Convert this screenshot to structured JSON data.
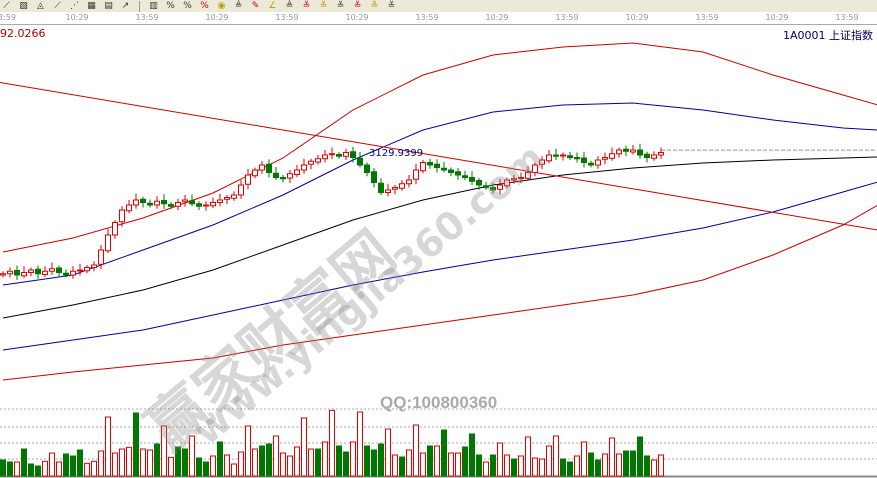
{
  "toolbar": {
    "icons": [
      "line-tool-icon",
      "channel-tool-icon",
      "fan-tool-icon",
      "ray-tool-icon",
      "fib-tool-icon",
      "grid-tool-icon",
      "box-tool-icon",
      "arrow-tool-icon",
      "|",
      "chart-type-icon",
      "percent-icon",
      "ratio-icon",
      "percent-line-icon",
      "coin-icon",
      "gold-icon",
      "pen-icon",
      "angle-icon",
      "gold-line-icon",
      "level-1-icon",
      "level-2-icon",
      "level-3-icon",
      "level-4-icon",
      "level-5-icon",
      "level-6-icon"
    ],
    "glyphs": [
      "⟋",
      "▧",
      "◬",
      "⟋",
      "⋰",
      "▦",
      "▤",
      "↗",
      "|",
      "▥",
      "%",
      "%",
      "%",
      "◉",
      "≜",
      "✎",
      "∠",
      "≜",
      "≚",
      "≚",
      "≚",
      "≚",
      "≚",
      "≚"
    ]
  },
  "time_axis": [
    "3:59",
    "10:29",
    "13:59",
    "10:29",
    "13:59",
    "10:29",
    "13:59",
    "10:29",
    "13:59",
    "10:29",
    "13:59",
    "10:29",
    "13:59"
  ],
  "last_value": "92.0266",
  "symbol": "1A0001  上证指数",
  "annotation": "3129.9399",
  "watermark": {
    "brand": "赢家财富网",
    "url": "www.yingjia360.com",
    "qq": "QQ:100800360"
  },
  "colors": {
    "up": "#e00000",
    "down": "#007700",
    "band_outer": "#cc0000",
    "band_inner": "#000099",
    "mid": "#000000",
    "trend": "#cc0000"
  },
  "chart_data": {
    "type": "candlestick",
    "reference_price": 3129.9399,
    "close": [
      3031,
      3033,
      3030,
      3032,
      3034,
      3031,
      3033,
      3035,
      3032,
      3030,
      3033,
      3034,
      3036,
      3038,
      3050,
      3062,
      3072,
      3082,
      3086,
      3090,
      3088,
      3086,
      3089,
      3087,
      3085,
      3088,
      3090,
      3087,
      3085,
      3086,
      3088,
      3090,
      3092,
      3094,
      3102,
      3110,
      3114,
      3118,
      3112,
      3108,
      3107,
      3111,
      3114,
      3118,
      3121,
      3123,
      3126,
      3127,
      3125,
      3128,
      3124,
      3118,
      3112,
      3104,
      3096,
      3098,
      3100,
      3103,
      3106,
      3114,
      3120,
      3118,
      3116,
      3114,
      3112,
      3110,
      3108,
      3105,
      3102,
      3100,
      3098,
      3102,
      3106,
      3107,
      3108,
      3112,
      3118,
      3122,
      3126,
      3125,
      3126,
      3124,
      3123,
      3120,
      3118,
      3122,
      3124,
      3127,
      3130,
      3129,
      3130,
      3126,
      3124,
      3126,
      3128
    ],
    "band_index": [
      0,
      10,
      20,
      30,
      40,
      50,
      60,
      70,
      80,
      90,
      100,
      110,
      120,
      125
    ],
    "bands": {
      "upper_outer": [
        3048.4,
        3059.6,
        3075.6,
        3095.6,
        3123.6,
        3162,
        3190,
        3206,
        3212.4,
        3215.6,
        3208.4,
        3190,
        3174,
        3166
      ],
      "upper_inner": [
        3022,
        3030,
        3050,
        3070,
        3094,
        3122,
        3146,
        3160.4,
        3166,
        3167.6,
        3162,
        3154,
        3147.6,
        3146
      ],
      "middle": [
        2995.6,
        3006,
        3018,
        3034,
        3054,
        3074,
        3090,
        3102,
        3110,
        3115.6,
        3119.6,
        3122,
        3123.6,
        3124.4
      ],
      "lower_inner": [
        2970,
        2978,
        2986,
        2998,
        3010,
        3022,
        3032.4,
        3042,
        3050,
        3058,
        3067.6,
        3080.4,
        3096.4,
        3104.4
      ],
      "lower_outer": [
        2946,
        2952.4,
        2958,
        2963.6,
        2974,
        2982,
        2990,
        2998,
        3006,
        3014,
        3026,
        3046,
        3070,
        3086
      ]
    },
    "trendline": [
      [
        0,
        3184
      ],
      [
        125,
        3066
      ]
    ],
    "volume": [
      [
        48,
        "g"
      ],
      [
        42,
        "g"
      ],
      [
        42,
        "r"
      ],
      [
        81,
        "g"
      ],
      [
        36,
        "g"
      ],
      [
        30,
        "g"
      ],
      [
        44,
        "r"
      ],
      [
        69,
        "r"
      ],
      [
        42,
        "r"
      ],
      [
        66,
        "g"
      ],
      [
        60,
        "g"
      ],
      [
        78,
        "g"
      ],
      [
        38,
        "r"
      ],
      [
        44,
        "r"
      ],
      [
        75,
        "r"
      ],
      [
        177,
        "r"
      ],
      [
        69,
        "r"
      ],
      [
        81,
        "r"
      ],
      [
        86,
        "r"
      ],
      [
        189,
        "g"
      ],
      [
        81,
        "r"
      ],
      [
        78,
        "r"
      ],
      [
        96,
        "g"
      ],
      [
        150,
        "r"
      ],
      [
        56,
        "r"
      ],
      [
        87,
        "g"
      ],
      [
        81,
        "g"
      ],
      [
        120,
        "r"
      ],
      [
        54,
        "g"
      ],
      [
        42,
        "g"
      ],
      [
        60,
        "r"
      ],
      [
        102,
        "g"
      ],
      [
        63,
        "r"
      ],
      [
        36,
        "r"
      ],
      [
        72,
        "r"
      ],
      [
        150,
        "r"
      ],
      [
        81,
        "r"
      ],
      [
        90,
        "g"
      ],
      [
        96,
        "g"
      ],
      [
        120,
        "r"
      ],
      [
        69,
        "r"
      ],
      [
        60,
        "r"
      ],
      [
        87,
        "r"
      ],
      [
        174,
        "r"
      ],
      [
        81,
        "r"
      ],
      [
        81,
        "g"
      ],
      [
        102,
        "r"
      ],
      [
        197,
        "r"
      ],
      [
        90,
        "g"
      ],
      [
        72,
        "g"
      ],
      [
        102,
        "r"
      ],
      [
        192,
        "r"
      ],
      [
        90,
        "g"
      ],
      [
        78,
        "g"
      ],
      [
        96,
        "g"
      ],
      [
        141,
        "r"
      ],
      [
        63,
        "r"
      ],
      [
        57,
        "g"
      ],
      [
        78,
        "r"
      ],
      [
        153,
        "r"
      ],
      [
        69,
        "r"
      ],
      [
        90,
        "g"
      ],
      [
        90,
        "r"
      ],
      [
        138,
        "g"
      ],
      [
        69,
        "r"
      ],
      [
        69,
        "r"
      ],
      [
        87,
        "g"
      ],
      [
        126,
        "g"
      ],
      [
        63,
        "g"
      ],
      [
        42,
        "r"
      ],
      [
        63,
        "g"
      ],
      [
        99,
        "r"
      ],
      [
        63,
        "r"
      ],
      [
        51,
        "g"
      ],
      [
        60,
        "r"
      ],
      [
        117,
        "r"
      ],
      [
        54,
        "r"
      ],
      [
        51,
        "r"
      ],
      [
        90,
        "r"
      ],
      [
        120,
        "r"
      ],
      [
        51,
        "g"
      ],
      [
        42,
        "g"
      ],
      [
        60,
        "r"
      ],
      [
        102,
        "r"
      ],
      [
        69,
        "g"
      ],
      [
        48,
        "g"
      ],
      [
        66,
        "r"
      ],
      [
        114,
        "r"
      ],
      [
        66,
        "r"
      ],
      [
        75,
        "g"
      ],
      [
        75,
        "g"
      ],
      [
        117,
        "g"
      ],
      [
        60,
        "g"
      ],
      [
        48,
        "r"
      ],
      [
        63,
        "r"
      ]
    ]
  }
}
